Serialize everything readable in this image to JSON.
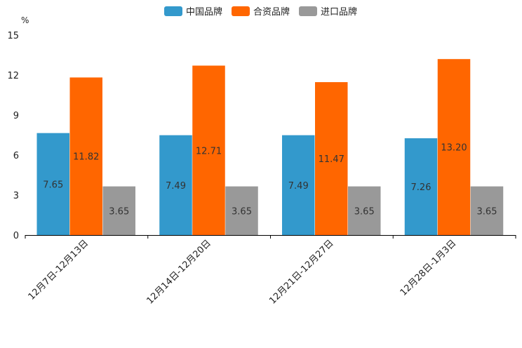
{
  "chart_data": {
    "type": "bar",
    "title": "",
    "xlabel": "",
    "ylabel": "%",
    "ylim": [
      0,
      15
    ],
    "yticks": [
      0,
      3,
      6,
      9,
      12,
      15
    ],
    "legend_position": "top-center",
    "categories": [
      "12月7日-12月13日",
      "12月14日-12月20日",
      "12月21日-12月27日",
      "12月28日-1月3日"
    ],
    "series": [
      {
        "name": "中国品牌",
        "color": "#3399cc",
        "values": [
          7.65,
          7.49,
          7.49,
          7.26
        ]
      },
      {
        "name": "合资品牌",
        "color": "#ff6600",
        "values": [
          11.82,
          12.71,
          11.47,
          13.2
        ]
      },
      {
        "name": "进口品牌",
        "color": "#999999",
        "values": [
          3.65,
          3.65,
          3.65,
          3.65
        ]
      }
    ]
  }
}
